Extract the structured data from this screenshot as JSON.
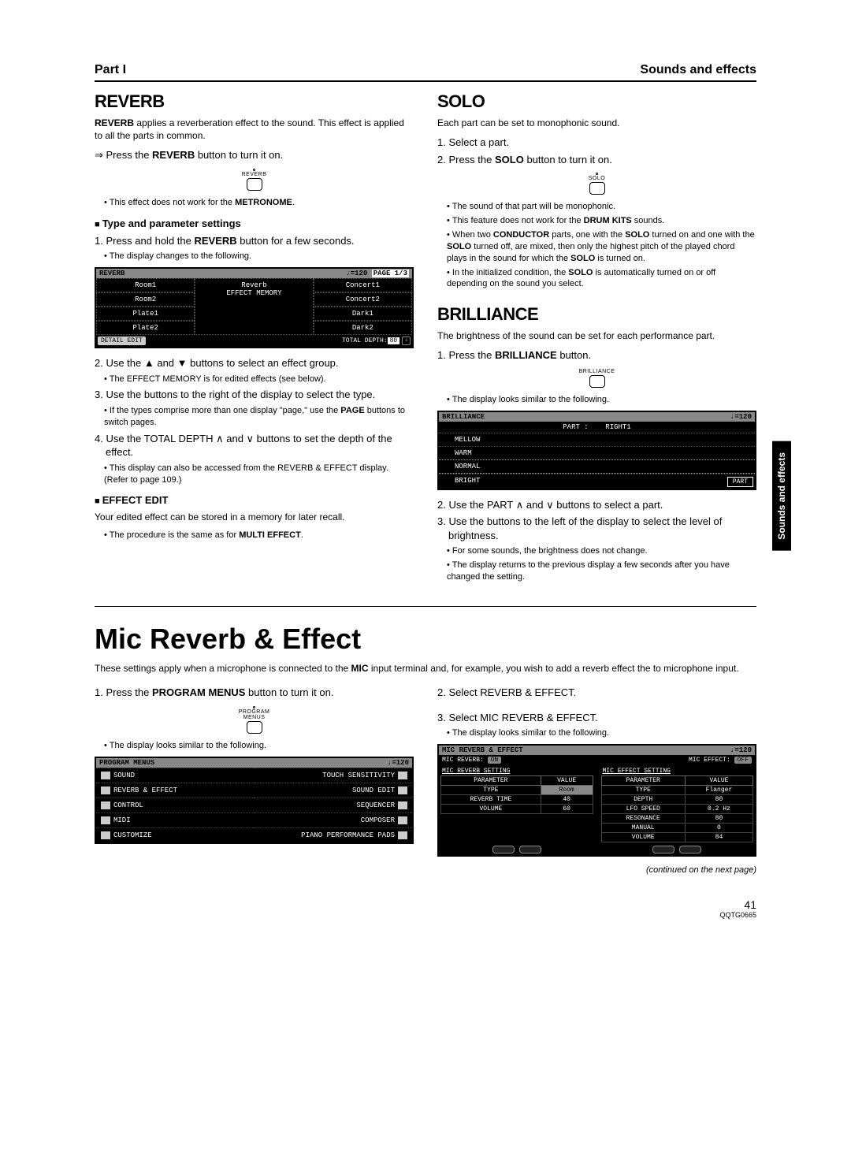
{
  "header": {
    "part": "Part I",
    "section": "Sounds and effects"
  },
  "side_tab": "Sounds and effects",
  "reverb": {
    "title": "REVERB",
    "intro_html": "<b>REVERB</b> applies a reverberation effect to the sound. This effect is applied to all the parts in common.",
    "press_html": "⇒ Press the <b>REVERB</b> button to turn it on.",
    "button_label": "REVERB",
    "note1_html": "This effect does not work for the <b>METRONOME</b>.",
    "subhead": "Type and parameter settings",
    "step1_html": "1. Press and hold the <b>REVERB</b> button for a few seconds.",
    "step1_note": "The display changes to the following.",
    "lcd": {
      "title": "REVERB",
      "tempo": "♩=120",
      "page": "PAGE 1/3",
      "left": [
        "Room1",
        "Room2",
        "Plate1",
        "Plate2"
      ],
      "center": "Reverb\nEFFECT MEMORY",
      "right": [
        "Concert1",
        "Concert2",
        "Dark1",
        "Dark2"
      ],
      "footer_left": "DETAIL EDIT",
      "footer_right": "TOTAL DEPTH:",
      "depth_value": "80"
    },
    "step2": "2. Use the ▲ and ▼ buttons to select an effect group.",
    "step2_note": "The EFFECT MEMORY is for edited effects (see below).",
    "step3": "3. Use the buttons to the right of the display to select the type.",
    "step3_note_html": "If the types comprise more than one display \"page,\" use the <b>PAGE</b> buttons to switch pages.",
    "step4": "4. Use the TOTAL DEPTH ∧ and ∨ buttons to set the depth of the effect.",
    "step4_note": "This display can also be accessed from the REVERB & EFFECT display. (Refer to page 109.)",
    "effect_edit_head": "EFFECT EDIT",
    "effect_edit_text": "Your edited effect can be stored in a memory for later recall.",
    "effect_edit_note_html": "The procedure is the same as for <b>MULTI EFFECT</b>."
  },
  "solo": {
    "title": "SOLO",
    "intro": "Each part can be set to monophonic sound.",
    "step1": "1. Select a part.",
    "step2_html": "2. Press the <b>SOLO</b> button to turn it on.",
    "button_label": "SOLO",
    "note1": "The sound of that part will be monophonic.",
    "note2_html": "This feature does not work for the <b>DRUM KITS</b> sounds.",
    "note3_html": "When two <b>CONDUCTOR</b> parts, one with the <b>SOLO</b> turned on and one with the <b>SOLO</b> turned off, are mixed, then only the highest pitch of the played chord plays in the sound for which the <b>SOLO</b> is turned on.",
    "note4_html": "In the initialized condition, the <b>SOLO</b> is automatically turned on or off depending on the sound you select."
  },
  "brilliance": {
    "title": "BRILLIANCE",
    "intro": "The brightness of the sound can be set for each performance part.",
    "step1_html": "1. Press the <b>BRILLIANCE</b> button.",
    "button_label": "BRILLIANCE",
    "note1": "The display looks similar to the following.",
    "lcd": {
      "title": "BRILLIANCE",
      "tempo": "♩=120",
      "part_label": "PART :",
      "part_value": "RIGHT1",
      "options": [
        "MELLOW",
        "WARM",
        "NORMAL",
        "BRIGHT"
      ],
      "part_btn": "PART"
    },
    "step2": "2. Use the PART ∧ and ∨ buttons to select a part.",
    "step3": "3. Use the buttons to the left of the display to select the level of brightness.",
    "note2": "For some sounds, the brightness does not change.",
    "note3": "The display returns to the previous display a few seconds after you have changed the setting."
  },
  "mic": {
    "title": "Mic Reverb & Effect",
    "intro_html": "These settings apply when a microphone is connected to the <b>MIC</b> input terminal and, for example, you wish to add a reverb effect the to microphone input.",
    "left": {
      "step1_html": "1. Press the <b>PROGRAM MENUS</b> button to turn it on.",
      "button_label1": "PROGRAM",
      "button_label2": "MENUS",
      "note1": "The display looks similar to the following.",
      "lcd": {
        "title": "PROGRAM MENUS",
        "tempo": "♩=120",
        "left_items": [
          "SOUND",
          "REVERB & EFFECT",
          "CONTROL",
          "MIDI",
          "CUSTOMIZE"
        ],
        "right_items": [
          "TOUCH SENSITIVITY",
          "SOUND EDIT",
          "SEQUENCER",
          "COMPOSER",
          "PIANO PERFORMANCE PADS"
        ]
      }
    },
    "right": {
      "step2": "2. Select REVERB & EFFECT.",
      "step3": "3. Select MIC REVERB & EFFECT.",
      "note1": "The display looks similar to the following.",
      "lcd": {
        "title": "MIC REVERB & EFFECT",
        "tempo": "♩=120",
        "sub_left_label": "MIC REVERB:",
        "sub_left_value": "ON",
        "sub_right_label": "MIC EFFECT:",
        "sub_right_value": "OFF",
        "tbl1_title": "MIC REVERB SETTING",
        "tbl2_title": "MIC EFFECT SETTING",
        "headers": [
          "PARAMETER",
          "VALUE"
        ],
        "tbl1_rows": [
          [
            "TYPE",
            "Room"
          ],
          [
            "REVERB TIME",
            "40"
          ],
          [
            "VOLUME",
            "60"
          ]
        ],
        "tbl2_rows": [
          [
            "TYPE",
            "Flanger"
          ],
          [
            "DEPTH",
            "80"
          ],
          [
            "LFO SPEED",
            "0.2 Hz"
          ],
          [
            "RESONANCE",
            "80"
          ],
          [
            "MANUAL",
            "0"
          ],
          [
            "VOLUME",
            "84"
          ]
        ]
      }
    }
  },
  "continued": "(continued on the next page)",
  "page_num": "41",
  "page_code": "QQTG0665"
}
